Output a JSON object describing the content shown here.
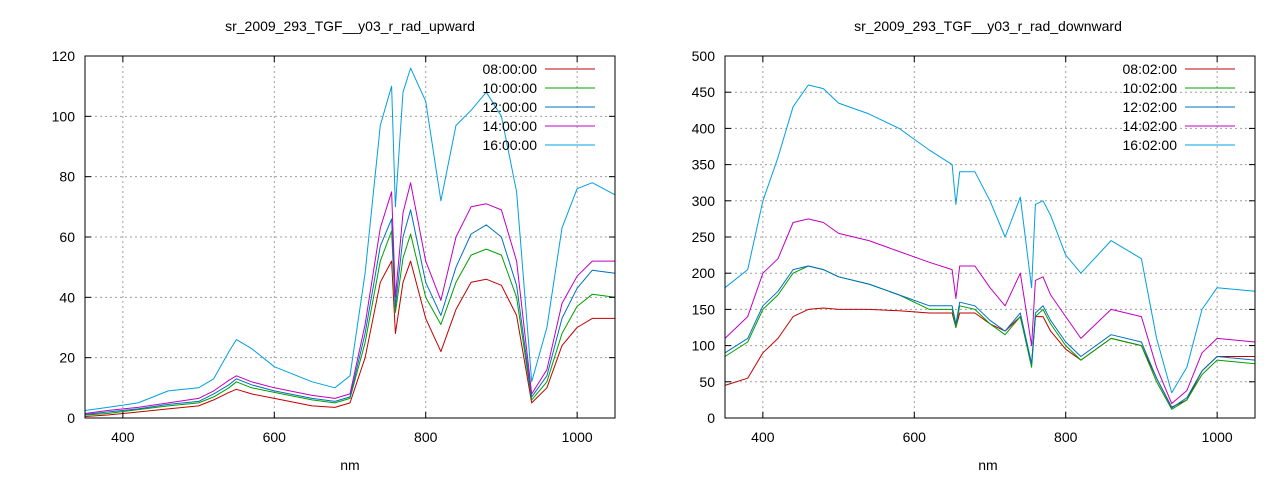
{
  "chart_data": [
    {
      "type": "line",
      "title": "sr_2009_293_TGF__y03_r_rad_upward",
      "xlabel": "nm",
      "ylabel": "",
      "xlim": [
        350,
        1050
      ],
      "ylim": [
        0,
        120
      ],
      "xticks": [
        400,
        600,
        800,
        1000
      ],
      "yticks": [
        0,
        20,
        40,
        60,
        80,
        100,
        120
      ],
      "grid": true,
      "legend": "top-right",
      "x": [
        350,
        380,
        420,
        460,
        500,
        520,
        540,
        550,
        570,
        600,
        650,
        680,
        700,
        720,
        740,
        755,
        760,
        770,
        780,
        800,
        820,
        840,
        860,
        880,
        900,
        920,
        940,
        960,
        980,
        1000,
        1020,
        1050
      ],
      "series": [
        {
          "name": "08:00:00",
          "color": "#c00000",
          "values": [
            0.5,
            1,
            2,
            3,
            4,
            6,
            8.5,
            9.5,
            8,
            6.5,
            4,
            3.5,
            5,
            20,
            45,
            52,
            28,
            45,
            52,
            33,
            22,
            36,
            45,
            46,
            44,
            34,
            5,
            10,
            24,
            30,
            33,
            33
          ]
        },
        {
          "name": "10:00:00",
          "color": "#00a000",
          "values": [
            1,
            1.5,
            2.8,
            4,
            5,
            7,
            10,
            12,
            10,
            8.5,
            6,
            5,
            6.5,
            25,
            52,
            62,
            35,
            53,
            61,
            40,
            31,
            45,
            54,
            56,
            54,
            40,
            6,
            12,
            28,
            37,
            41,
            40
          ]
        },
        {
          "name": "12:00:00",
          "color": "#0070c0",
          "values": [
            1.2,
            2,
            3,
            4.5,
            5.5,
            8,
            11,
            13,
            11,
            9,
            6.5,
            5.5,
            7,
            28,
            57,
            66,
            37,
            60,
            69,
            45,
            34,
            50,
            61,
            64,
            60,
            44,
            7,
            14,
            33,
            43,
            49,
            48
          ]
        },
        {
          "name": "14:00:00",
          "color": "#c000c0",
          "values": [
            1.5,
            2.5,
            3.5,
            5,
            6.5,
            9,
            12.5,
            14,
            12,
            10,
            7.5,
            6.5,
            8,
            31,
            63,
            75,
            40,
            68,
            78,
            52,
            39,
            60,
            70,
            71,
            69,
            52,
            8,
            16,
            38,
            47,
            52,
            52
          ]
        },
        {
          "name": "16:00:00",
          "color": "#00a0e0",
          "values": [
            2.5,
            3.5,
            5,
            9,
            10,
            13,
            22,
            26,
            23,
            17,
            12,
            10,
            14,
            48,
            97,
            110,
            70,
            108,
            116,
            105,
            72,
            97,
            102,
            108,
            100,
            75,
            12,
            30,
            63,
            76,
            78,
            74
          ]
        }
      ]
    },
    {
      "type": "line",
      "title": "sr_2009_293_TGF__y03_r_rad_downward",
      "xlabel": "nm",
      "ylabel": "",
      "xlim": [
        350,
        1050
      ],
      "ylim": [
        0,
        500
      ],
      "xticks": [
        400,
        600,
        800,
        1000
      ],
      "yticks": [
        0,
        50,
        100,
        150,
        200,
        250,
        300,
        350,
        400,
        450,
        500
      ],
      "grid": true,
      "legend": "top-right",
      "x": [
        350,
        380,
        400,
        420,
        440,
        460,
        480,
        500,
        540,
        580,
        620,
        650,
        655,
        660,
        680,
        700,
        720,
        740,
        755,
        760,
        770,
        780,
        800,
        820,
        860,
        900,
        920,
        940,
        960,
        980,
        1000,
        1050
      ],
      "series": [
        {
          "name": "08:02:00",
          "color": "#c00000",
          "values": [
            45,
            55,
            90,
            110,
            140,
            150,
            152,
            150,
            150,
            148,
            145,
            145,
            125,
            145,
            145,
            130,
            120,
            140,
            75,
            140,
            140,
            120,
            95,
            80,
            110,
            100,
            55,
            15,
            25,
            65,
            85,
            85
          ]
        },
        {
          "name": "10:02:00",
          "color": "#00a000",
          "values": [
            85,
            105,
            150,
            170,
            200,
            210,
            205,
            195,
            185,
            170,
            150,
            150,
            125,
            155,
            150,
            130,
            115,
            140,
            70,
            140,
            150,
            130,
            100,
            80,
            110,
            100,
            50,
            12,
            25,
            60,
            80,
            75
          ]
        },
        {
          "name": "12:02:00",
          "color": "#0070c0",
          "values": [
            90,
            110,
            155,
            175,
            205,
            210,
            205,
            195,
            185,
            170,
            155,
            155,
            130,
            160,
            155,
            135,
            120,
            145,
            75,
            145,
            155,
            135,
            105,
            85,
            115,
            105,
            55,
            14,
            28,
            65,
            85,
            80
          ]
        },
        {
          "name": "14:02:00",
          "color": "#c000c0",
          "values": [
            110,
            140,
            200,
            220,
            270,
            275,
            270,
            255,
            245,
            230,
            215,
            205,
            165,
            210,
            210,
            180,
            155,
            200,
            100,
            190,
            195,
            170,
            140,
            110,
            150,
            140,
            70,
            20,
            38,
            90,
            110,
            105
          ]
        },
        {
          "name": "16:02:00",
          "color": "#00a0e0",
          "values": [
            180,
            205,
            300,
            360,
            430,
            460,
            455,
            435,
            420,
            400,
            370,
            350,
            295,
            340,
            340,
            300,
            250,
            305,
            180,
            295,
            300,
            280,
            225,
            200,
            245,
            220,
            110,
            35,
            70,
            150,
            180,
            175
          ]
        }
      ]
    }
  ]
}
